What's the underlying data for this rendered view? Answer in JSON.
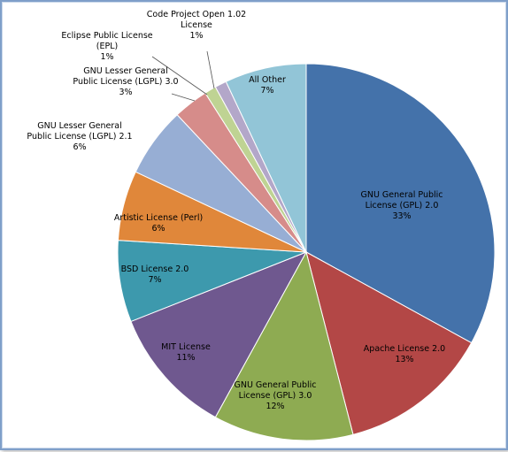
{
  "chart_data": {
    "type": "pie",
    "title": "",
    "start_angle_deg": 0,
    "direction": "clockwise",
    "slices": [
      {
        "label": "GNU General Public License (GPL) 2.0",
        "value": 33,
        "display": "33%",
        "color": "#4472aa",
        "label_lines": [
          "GNU General Public",
          "License (GPL) 2.0",
          "33%"
        ]
      },
      {
        "label": "Apache License 2.0",
        "value": 13,
        "display": "13%",
        "color": "#b34746",
        "label_lines": [
          "Apache License 2.0",
          "13%"
        ]
      },
      {
        "label": "GNU General Public License (GPL) 3.0",
        "value": 12,
        "display": "12%",
        "color": "#8eab52",
        "label_lines": [
          "GNU General Public",
          "License (GPL) 3.0",
          "12%"
        ]
      },
      {
        "label": "MIT License",
        "value": 11,
        "display": "11%",
        "color": "#6f588f",
        "label_lines": [
          "MIT License",
          "11%"
        ]
      },
      {
        "label": "BSD License 2.0",
        "value": 7,
        "display": "7%",
        "color": "#3d99ad",
        "label_lines": [
          "BSD License 2.0",
          "7%"
        ]
      },
      {
        "label": "Artistic License (Perl)",
        "value": 6,
        "display": "6%",
        "color": "#e0873a",
        "label_lines": [
          "Artistic License (Perl)",
          "6%"
        ]
      },
      {
        "label": "GNU Lesser General Public License (LGPL) 2.1",
        "value": 6,
        "display": "6%",
        "color": "#97aed4",
        "label_lines": [
          "GNU Lesser General",
          "Public License (LGPL) 2.1",
          "6%"
        ]
      },
      {
        "label": "GNU Lesser General Public License (LGPL) 3.0",
        "value": 3,
        "display": "3%",
        "color": "#d68c8a",
        "label_lines": [
          "GNU Lesser General",
          "Public License (LGPL) 3.0",
          "3%"
        ]
      },
      {
        "label": "Eclipse Public License (EPL)",
        "value": 1,
        "display": "1%",
        "color": "#bfd393",
        "label_lines": [
          "Eclipse Public License",
          "(EPL)",
          "1%"
        ]
      },
      {
        "label": "Code Project Open 1.02 License",
        "value": 1,
        "display": "1%",
        "color": "#b3a7c9",
        "label_lines": [
          "Code Project Open 1.02",
          "License",
          "1%"
        ]
      },
      {
        "label": "All Other",
        "value": 7,
        "display": "7%",
        "color": "#92c5d7",
        "label_lines": [
          "All Other",
          "7%"
        ]
      }
    ]
  }
}
